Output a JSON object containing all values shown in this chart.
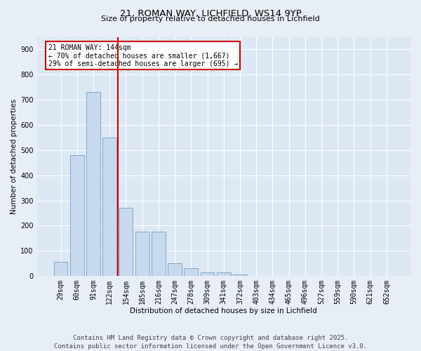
{
  "title1": "21, ROMAN WAY, LICHFIELD, WS14 9YP",
  "title2": "Size of property relative to detached houses in Lichfield",
  "xlabel": "Distribution of detached houses by size in Lichfield",
  "ylabel": "Number of detached properties",
  "categories": [
    "29sqm",
    "60sqm",
    "91sqm",
    "122sqm",
    "154sqm",
    "185sqm",
    "216sqm",
    "247sqm",
    "278sqm",
    "309sqm",
    "341sqm",
    "372sqm",
    "403sqm",
    "434sqm",
    "465sqm",
    "496sqm",
    "527sqm",
    "559sqm",
    "590sqm",
    "621sqm",
    "652sqm"
  ],
  "values": [
    55,
    480,
    730,
    550,
    270,
    175,
    175,
    50,
    30,
    15,
    15,
    5,
    0,
    0,
    0,
    0,
    0,
    0,
    0,
    0,
    0
  ],
  "bar_color": "#c9d9ed",
  "bar_edge_color": "#7aaacf",
  "vline_x": 3.5,
  "vline_color": "#cc0000",
  "annotation_text": "21 ROMAN WAY: 144sqm\n← 70% of detached houses are smaller (1,667)\n29% of semi-detached houses are larger (695) →",
  "annotation_box_color": "#ffffff",
  "annotation_box_edge": "#cc0000",
  "ylim": [
    0,
    950
  ],
  "yticks": [
    0,
    100,
    200,
    300,
    400,
    500,
    600,
    700,
    800,
    900
  ],
  "footer1": "Contains HM Land Registry data © Crown copyright and database right 2025.",
  "footer2": "Contains public sector information licensed under the Open Government Licence v3.0.",
  "bg_color": "#e8eef5",
  "plot_bg_color": "#dce8f4",
  "grid_color": "#ffffff",
  "title_fontsize": 9.5,
  "subtitle_fontsize": 8,
  "footer_fontsize": 6.5,
  "xlabel_fontsize": 7.5,
  "ylabel_fontsize": 7.5,
  "tick_fontsize": 7,
  "annot_fontsize": 7
}
